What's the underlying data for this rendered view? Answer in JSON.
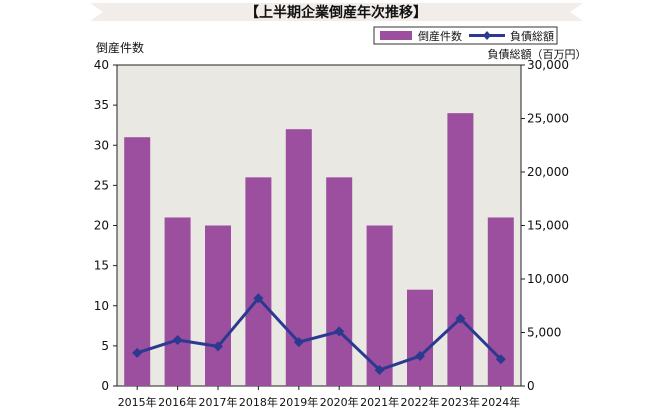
{
  "chart_data": {
    "type": "bar",
    "title": "【上半期企業倒産年次推移】",
    "categories": [
      "2015年",
      "2016年",
      "2017年",
      "2018年",
      "2019年",
      "2020年",
      "2021年",
      "2022年",
      "2023年",
      "2024年"
    ],
    "series": [
      {
        "name": "倒産件数",
        "type": "bar",
        "axis": "left",
        "color": "#9b4f9e",
        "values": [
          31,
          21,
          20,
          26,
          32,
          26,
          20,
          12,
          34,
          21
        ]
      },
      {
        "name": "負債総額",
        "type": "line",
        "axis": "right",
        "color": "#2b3990",
        "values": [
          3100,
          4300,
          3700,
          8200,
          4100,
          5100,
          1500,
          2800,
          6300,
          2500
        ]
      }
    ],
    "ylabel_left": "倒産件数",
    "ylabel_right": "負債総額（百万円）",
    "ylim_left": [
      0,
      40
    ],
    "ylim_right": [
      0,
      30000
    ],
    "yticks_left": [
      "0",
      "5",
      "10",
      "15",
      "20",
      "25",
      "30",
      "35",
      "40"
    ],
    "yticks_right": [
      "0",
      "5,000",
      "10,000",
      "15,000",
      "20,000",
      "25,000",
      "30,000"
    ],
    "legend_position": "top-right",
    "grid": false,
    "plot_background": "#eae8e3",
    "banner_background": "#f2ede9"
  }
}
